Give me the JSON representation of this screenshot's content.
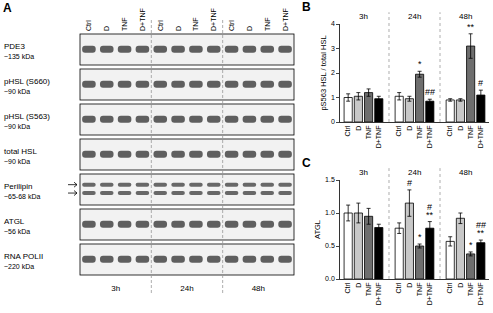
{
  "panel_a": {
    "label": "A",
    "rows": [
      {
        "name": "PDE3",
        "size": "~135 kDa"
      },
      {
        "name": "pHSL (S660)",
        "size": "~90 kDa"
      },
      {
        "name": "pHSL (S563)",
        "size": "~90 kDa"
      },
      {
        "name": "total HSL",
        "size": "~90 kDa"
      },
      {
        "name": "Perilipin",
        "size": "~65-68 kDa"
      },
      {
        "name": "ATGL",
        "size": "~56 kDa"
      },
      {
        "name": "RNA POLII",
        "size": "~220 kDa"
      }
    ],
    "lanes": [
      "Ctrl",
      "D",
      "TNF",
      "D+TNF"
    ],
    "times": [
      "3h",
      "24h",
      "48h"
    ]
  },
  "chart_data": [
    {
      "label": "B",
      "type": "bar",
      "y_label": "pS563 HSL / total HSL",
      "categories": [
        "3h",
        "24h",
        "48h"
      ],
      "series": [
        {
          "name": "Ctrl",
          "color": "#ffffff",
          "values": [
            1.0,
            1.05,
            0.9
          ],
          "errors": [
            0.15,
            0.15,
            0.05
          ]
        },
        {
          "name": "D",
          "color": "#c8c8c8",
          "values": [
            1.05,
            0.95,
            0.9
          ],
          "errors": [
            0.15,
            0.1,
            0.05
          ]
        },
        {
          "name": "TNF",
          "color": "#6e6e6e",
          "values": [
            1.2,
            1.95,
            3.1
          ],
          "errors": [
            0.15,
            0.12,
            0.5
          ]
        },
        {
          "name": "D+TNF",
          "color": "#000000",
          "values": [
            0.95,
            0.85,
            1.1
          ],
          "errors": [
            0.1,
            0.08,
            0.2
          ]
        }
      ],
      "ylim": [
        0,
        4
      ],
      "yticks": [
        0,
        1,
        2,
        3,
        4
      ],
      "grid": false,
      "annotations": [
        {
          "category": "24h",
          "series": "TNF",
          "text": "*"
        },
        {
          "category": "24h",
          "series": "D+TNF",
          "text": "##"
        },
        {
          "category": "48h",
          "series": "TNF",
          "text": "**"
        },
        {
          "category": "48h",
          "series": "D+TNF",
          "text": "#"
        }
      ]
    },
    {
      "label": "C",
      "type": "bar",
      "y_label": "ATGL",
      "categories": [
        "3h",
        "24h",
        "48h"
      ],
      "series": [
        {
          "name": "Ctrl",
          "color": "#ffffff",
          "values": [
            1.0,
            0.77,
            0.57
          ],
          "errors": [
            0.12,
            0.08,
            0.07
          ]
        },
        {
          "name": "D",
          "color": "#c8c8c8",
          "values": [
            1.0,
            1.15,
            0.92
          ],
          "errors": [
            0.15,
            0.2,
            0.08
          ]
        },
        {
          "name": "TNF",
          "color": "#6e6e6e",
          "values": [
            0.95,
            0.5,
            0.38
          ],
          "errors": [
            0.12,
            0.03,
            0.03
          ]
        },
        {
          "name": "D+TNF",
          "color": "#000000",
          "values": [
            0.78,
            0.77,
            0.55
          ],
          "errors": [
            0.05,
            0.1,
            0.04
          ]
        }
      ],
      "ylim": [
        0,
        1.5
      ],
      "yticks": [
        {
          "value": 0,
          "label": "0.0"
        },
        0.5,
        {
          "value": 1,
          "label": "1.0"
        },
        1.5
      ],
      "grid": false,
      "annotations": [
        {
          "category": "24h",
          "series": "D",
          "text": "#"
        },
        {
          "category": "24h",
          "series": "TNF",
          "text": "*"
        },
        {
          "category": "24h",
          "series": "D+TNF",
          "text": "**"
        },
        {
          "category": "24h",
          "series": "D+TNF",
          "text": "#"
        },
        {
          "category": "48h",
          "series": "TNF",
          "text": "*"
        },
        {
          "category": "48h",
          "series": "D+TNF",
          "text": "**"
        },
        {
          "category": "48h",
          "series": "D+TNF",
          "text": "##"
        }
      ]
    }
  ]
}
